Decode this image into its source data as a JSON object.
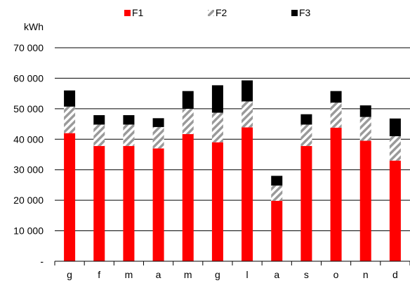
{
  "chart_data": {
    "type": "bar",
    "stacked": true,
    "unit_label": "kWh",
    "categories": [
      "g",
      "f",
      "m",
      "a",
      "m",
      "g",
      "l",
      "a",
      "s",
      "o",
      "n",
      "d"
    ],
    "series": [
      {
        "name": "F1",
        "color": "#ff0000",
        "pattern": "solid",
        "values": [
          42000,
          37800,
          37800,
          37000,
          41700,
          39000,
          43900,
          19800,
          37800,
          43800,
          39500,
          33000
        ]
      },
      {
        "name": "F2",
        "color": "#999999",
        "pattern": "diagonal-hatch",
        "values": [
          8700,
          7000,
          7000,
          7000,
          8300,
          9700,
          8500,
          5000,
          7000,
          8200,
          7800,
          8000
        ]
      },
      {
        "name": "F3",
        "color": "#000000",
        "pattern": "solid",
        "values": [
          5300,
          3100,
          3100,
          2900,
          5800,
          9000,
          6900,
          3200,
          3400,
          3800,
          3800,
          5800
        ]
      }
    ],
    "y_ticks": [
      "-",
      "10 000",
      "20 000",
      "30 000",
      "40 000",
      "50 000",
      "60 000",
      "70 000"
    ],
    "y_tick_values": [
      0,
      10000,
      20000,
      30000,
      40000,
      50000,
      60000,
      70000
    ],
    "ylim": [
      0,
      70000
    ],
    "grid": "horizontal",
    "legend_position": "top"
  }
}
